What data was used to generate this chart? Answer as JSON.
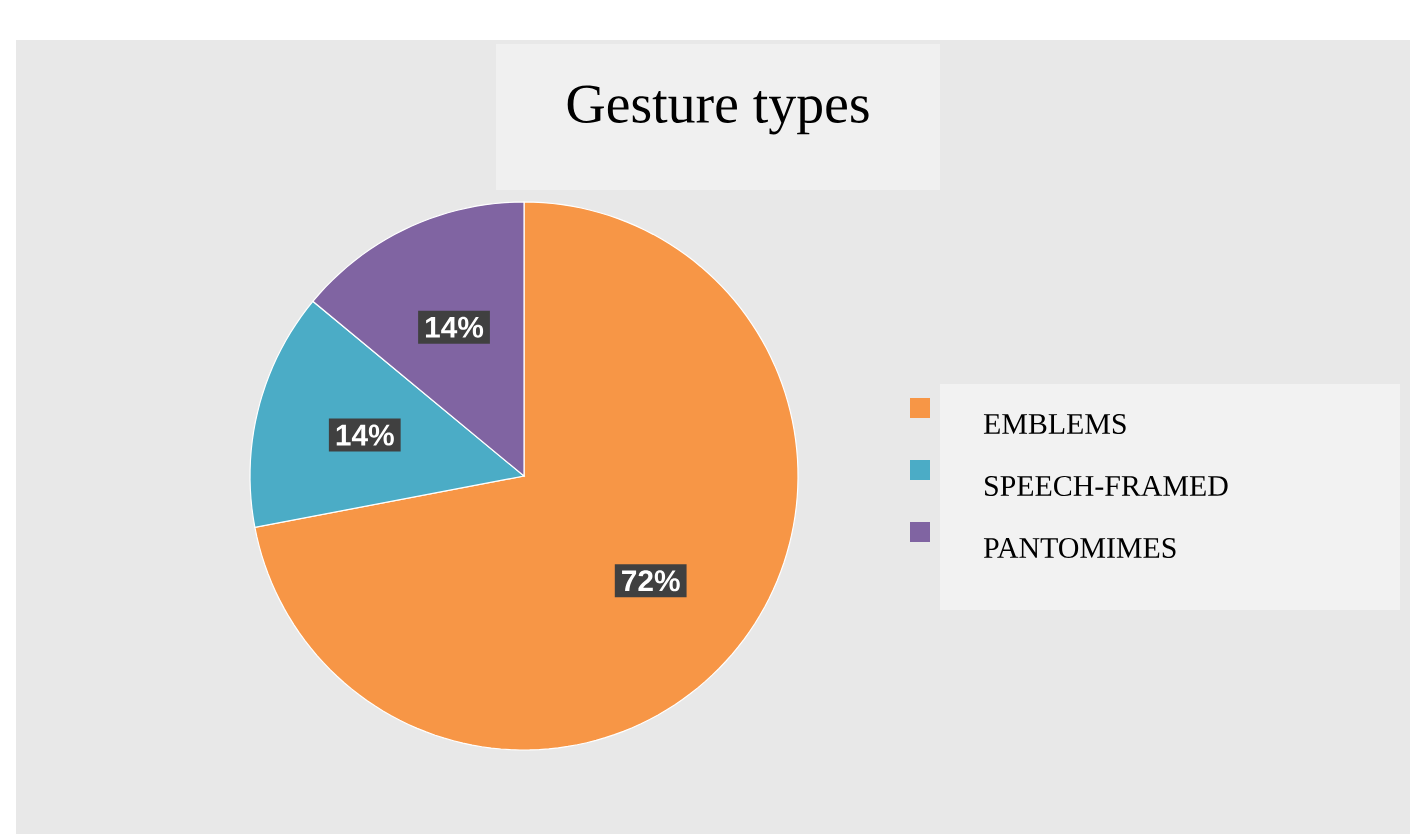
{
  "chart_data": {
    "type": "pie",
    "title": "Gesture types",
    "categories": [
      "EMBLEMS",
      "SPEECH-FRAMED",
      "PANTOMIMES"
    ],
    "values": [
      72,
      14,
      14
    ],
    "colors": [
      "#f79646",
      "#4bacc6",
      "#8064a2"
    ],
    "value_labels": [
      "72%",
      "14%",
      "14%"
    ],
    "legend": "right"
  }
}
